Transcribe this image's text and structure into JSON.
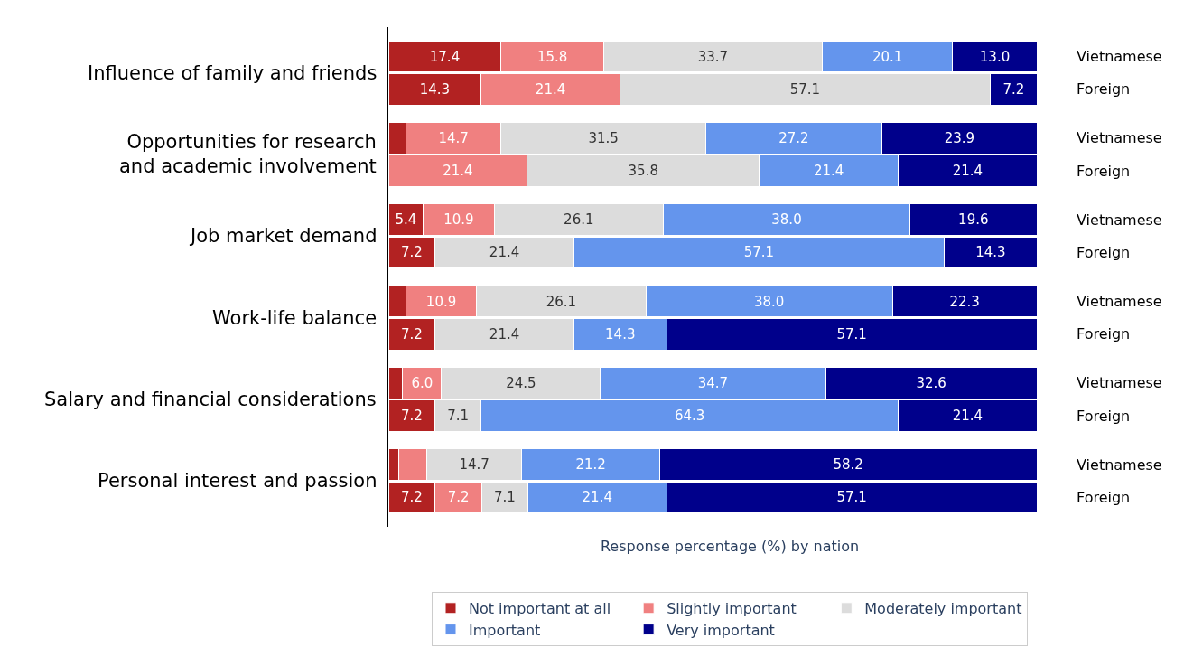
{
  "chart_data": {
    "type": "bar",
    "orientation": "horizontal",
    "stacked": true,
    "categories": [
      "Vietnamese",
      "Foreign",
      "Vietnamese",
      "Foreign",
      "Vietnamese",
      "Foreign",
      "Vietnamese",
      "Foreign",
      "Vietnamese",
      "Foreign",
      "Vietnamese",
      "Foreign"
    ],
    "annotations": [
      "Influence of family and friends",
      "Opportunities for research\nand academic involvement",
      "Job market demand",
      "Work-life balance",
      "Salary and financial considerations",
      "Personal interest and passion"
    ],
    "xlabel": "Response percentage (%) by nation",
    "series": [
      {
        "name": "Not important at all",
        "color": "#b22222",
        "values": [
          17.4,
          14.3,
          2.7,
          null,
          5.4,
          7.2,
          2.7,
          7.2,
          2.2,
          7.2,
          1.6,
          7.2
        ],
        "value_labels": [
          "17.4",
          "14.3",
          null,
          null,
          "5.4",
          "7.2",
          null,
          "7.2",
          null,
          "7.2",
          null,
          "7.2"
        ]
      },
      {
        "name": "Slightly important",
        "color": "#f08080",
        "values": [
          15.8,
          21.4,
          14.7,
          21.4,
          10.9,
          null,
          10.9,
          null,
          6.0,
          null,
          4.3,
          7.2
        ],
        "value_labels": [
          "15.8",
          "21.4",
          "14.7",
          "21.4",
          "10.9",
          null,
          "10.9",
          null,
          "6.0",
          null,
          null,
          "7.2"
        ]
      },
      {
        "name": "Moderately important",
        "color": "#dcdcdc",
        "values": [
          33.7,
          57.1,
          31.5,
          35.8,
          26.1,
          21.4,
          26.1,
          21.4,
          24.5,
          7.1,
          14.7,
          7.1
        ],
        "value_labels": [
          "33.7",
          "57.1",
          "31.5",
          "35.8",
          "26.1",
          "21.4",
          "26.1",
          "21.4",
          "24.5",
          "7.1",
          "14.7",
          "7.1"
        ]
      },
      {
        "name": "Important",
        "color": "#6495ed",
        "values": [
          20.1,
          null,
          27.2,
          21.4,
          38.0,
          57.1,
          38.0,
          14.3,
          34.7,
          64.3,
          21.2,
          21.4
        ],
        "value_labels": [
          "20.1",
          null,
          "27.2",
          "21.4",
          "38.0",
          "57.1",
          "38.0",
          "14.3",
          "34.7",
          "64.3",
          "21.2",
          "21.4"
        ]
      },
      {
        "name": "Very important",
        "color": "#00008b",
        "values": [
          13.0,
          7.2,
          23.9,
          21.4,
          19.6,
          14.3,
          22.3,
          57.1,
          32.6,
          21.4,
          58.2,
          57.1
        ],
        "value_labels": [
          "13.0",
          "7.2",
          "23.9",
          "21.4",
          "19.6",
          "14.3",
          "22.3",
          "57.1",
          "32.6",
          "21.4",
          "58.2",
          "57.1"
        ]
      }
    ],
    "legend": "bottom"
  }
}
